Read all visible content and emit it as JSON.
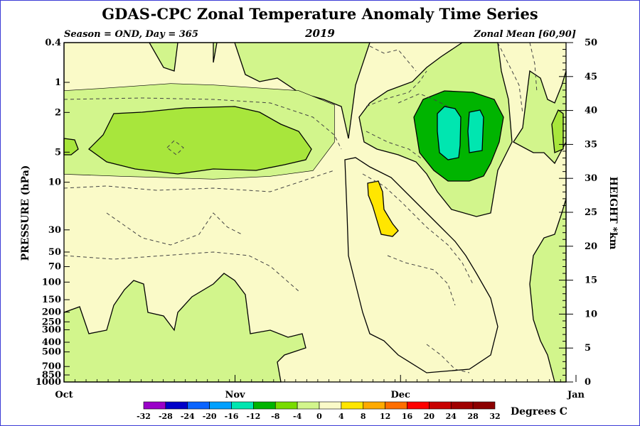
{
  "header": {
    "title": "GDAS-CPC Zonal Temperature Anomaly Time Series",
    "season": "Season = OND, Day = 365",
    "year": "2019",
    "region": "Zonal Mean [60,90]"
  },
  "chart_data": {
    "type": "heatmap",
    "title": "GDAS-CPC Zonal Temperature Anomaly Time Series",
    "x_axis": {
      "ticks": [
        "Oct",
        "Nov",
        "Dec",
        "Jan"
      ],
      "tick_days": [
        0,
        31,
        61,
        92
      ],
      "range_days": [
        0,
        91
      ]
    },
    "y_axis_left": {
      "label": "PRESSURE (hPa)",
      "ticks": [
        0.4,
        1,
        2,
        5,
        10,
        30,
        50,
        70,
        100,
        150,
        200,
        250,
        300,
        400,
        500,
        700,
        850,
        1000
      ],
      "tick_labels": [
        "0.4",
        "1",
        "2",
        "5",
        "10",
        "30",
        "50",
        "70",
        "100",
        "150",
        "200",
        "250",
        "300",
        "400",
        "500",
        "700",
        "850",
        "1000"
      ],
      "scale": "log",
      "range": [
        1000,
        0.4
      ]
    },
    "y_axis_right": {
      "label": "HEIGHT *km",
      "ticks": [
        0,
        5,
        10,
        15,
        20,
        25,
        30,
        35,
        40,
        45,
        50
      ],
      "tick_labels": [
        "0",
        "5",
        "10",
        "15",
        "20",
        "25",
        "30",
        "35",
        "40",
        "45",
        "50"
      ],
      "range": [
        0,
        50
      ]
    },
    "colorbar": {
      "label": "Degrees C",
      "levels": [
        -32,
        -28,
        -24,
        -20,
        -16,
        -12,
        -8,
        -4,
        0,
        4,
        8,
        12,
        16,
        20,
        24,
        28,
        32
      ],
      "level_labels": [
        "-32",
        "-28",
        "-24",
        "-20",
        "-16",
        "-12",
        "-8",
        "-4",
        "0",
        "4",
        "8",
        "12",
        "16",
        "20",
        "24",
        "28",
        "32"
      ],
      "colors": [
        "#9a00c8",
        "#0000c8",
        "#0a64ff",
        "#00a0ff",
        "#00e6b0",
        "#00b400",
        "#78dc00",
        "#d2f58c",
        "#fafac8",
        "#ffe600",
        "#ffaa00",
        "#ff6e00",
        "#ff0000",
        "#c80000",
        "#a00000",
        "#8c0000",
        "#96783c"
      ]
    },
    "regions": [
      {
        "name": "background",
        "anomaly_range": [
          -4,
          0
        ],
        "days": [
          0,
          91
        ],
        "pressure_hPa": [
          1000,
          0.4
        ]
      },
      {
        "name": "upper stratosphere Oct-Nov",
        "anomaly_range": [
          -8,
          -4
        ],
        "days": [
          0,
          50
        ],
        "pressure_hPa": [
          10,
          0.4
        ]
      },
      {
        "name": "Oct-Nov -8 core",
        "anomaly_range": [
          -12,
          -8
        ],
        "days": [
          8,
          45
        ],
        "pressure_hPa": [
          7,
          1.6
        ]
      },
      {
        "name": "troposphere Oct-Nov",
        "anomaly_range": [
          -8,
          -4
        ],
        "days": [
          0,
          55
        ],
        "pressure_hPa": [
          1000,
          150
        ]
      },
      {
        "name": "Dec warm anomaly",
        "anomaly_range": [
          0,
          4
        ],
        "days": [
          50,
          78
        ],
        "pressure_hPa": [
          500,
          8
        ]
      },
      {
        "name": "Dec warm core",
        "anomaly_range": [
          4,
          8
        ],
        "days": [
          55,
          59
        ],
        "pressure_hPa": [
          35,
          10
        ]
      },
      {
        "name": "Dec cold anomaly",
        "anomaly_range": [
          -8,
          -4
        ],
        "days": [
          53,
          82
        ],
        "pressure_hPa": [
          25,
          0.4
        ]
      },
      {
        "name": "Dec cold core",
        "anomaly_range": [
          -12,
          -8
        ],
        "days": [
          64,
          77
        ],
        "pressure_hPa": [
          8,
          1.5
        ]
      },
      {
        "name": "Dec cold center",
        "anomaly_range": [
          -16,
          -12
        ],
        "days": [
          68,
          74
        ],
        "pressure_hPa": [
          5,
          2
        ]
      }
    ]
  }
}
